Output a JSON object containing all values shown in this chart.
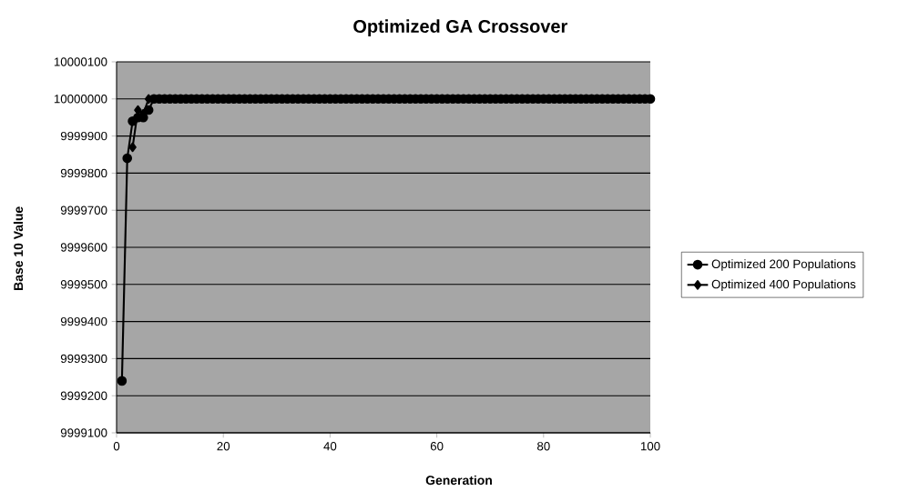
{
  "chart_data": {
    "type": "line",
    "title": "Optimized GA Crossover",
    "xlabel": "Generation",
    "ylabel": "Base 10 Value",
    "x": [
      1,
      2,
      3,
      4,
      5,
      6,
      7,
      8,
      9,
      10,
      11,
      12,
      13,
      14,
      15,
      16,
      17,
      18,
      19,
      20,
      21,
      22,
      23,
      24,
      25,
      26,
      27,
      28,
      29,
      30,
      31,
      32,
      33,
      34,
      35,
      36,
      37,
      38,
      39,
      40,
      41,
      42,
      43,
      44,
      45,
      46,
      47,
      48,
      49,
      50,
      51,
      52,
      53,
      54,
      55,
      56,
      57,
      58,
      59,
      60,
      61,
      62,
      63,
      64,
      65,
      66,
      67,
      68,
      69,
      70,
      71,
      72,
      73,
      74,
      75,
      76,
      77,
      78,
      79,
      80,
      81,
      82,
      83,
      84,
      85,
      86,
      87,
      88,
      89,
      90,
      91,
      92,
      93,
      94,
      95,
      96,
      97,
      98,
      99,
      100
    ],
    "series": [
      {
        "name": "Optimized 200 Populations",
        "color": "#000000",
        "marker": "circle",
        "values": [
          9999240,
          9999840,
          9999940,
          9999950,
          9999950,
          9999970,
          10000000,
          10000000,
          10000000,
          10000000,
          10000000,
          10000000,
          10000000,
          10000000,
          10000000,
          10000000,
          10000000,
          10000000,
          10000000,
          10000000,
          10000000,
          10000000,
          10000000,
          10000000,
          10000000,
          10000000,
          10000000,
          10000000,
          10000000,
          10000000,
          10000000,
          10000000,
          10000000,
          10000000,
          10000000,
          10000000,
          10000000,
          10000000,
          10000000,
          10000000,
          10000000,
          10000000,
          10000000,
          10000000,
          10000000,
          10000000,
          10000000,
          10000000,
          10000000,
          10000000,
          10000000,
          10000000,
          10000000,
          10000000,
          10000000,
          10000000,
          10000000,
          10000000,
          10000000,
          10000000,
          10000000,
          10000000,
          10000000,
          10000000,
          10000000,
          10000000,
          10000000,
          10000000,
          10000000,
          10000000,
          10000000,
          10000000,
          10000000,
          10000000,
          10000000,
          10000000,
          10000000,
          10000000,
          10000000,
          10000000,
          10000000,
          10000000,
          10000000,
          10000000,
          10000000,
          10000000,
          10000000,
          10000000,
          10000000,
          10000000,
          10000000,
          10000000,
          10000000,
          10000000,
          10000000,
          10000000,
          10000000,
          10000000,
          10000000,
          10000000
        ]
      },
      {
        "name": "Optimized 400 Populations",
        "color": "#000000",
        "marker": "diamond",
        "values": [
          null,
          null,
          9999870,
          9999970,
          9999960,
          10000000,
          null,
          null,
          null,
          null,
          null,
          null,
          null,
          null,
          null,
          null,
          null,
          null,
          null,
          null,
          null,
          null,
          null,
          null,
          null,
          null,
          null,
          null,
          null,
          null,
          null,
          null,
          null,
          null,
          null,
          null,
          null,
          null,
          null,
          null,
          null,
          null,
          null,
          null,
          null,
          null,
          null,
          null,
          null,
          null,
          null,
          null,
          null,
          null,
          null,
          null,
          null,
          null,
          null,
          null,
          null,
          null,
          null,
          null,
          null,
          null,
          null,
          null,
          null,
          null,
          null,
          null,
          null,
          null,
          null,
          null,
          null,
          null,
          null,
          null,
          null,
          null,
          null,
          null,
          null,
          null,
          null,
          null,
          null,
          null,
          null,
          null,
          null,
          null,
          null,
          null,
          null,
          null,
          null,
          null
        ]
      }
    ],
    "xlim": [
      0,
      100
    ],
    "xticks": [
      0,
      20,
      40,
      60,
      80,
      100
    ],
    "ylim": [
      9999100,
      10000100
    ],
    "yticks": [
      9999100,
      9999200,
      9999300,
      9999400,
      9999500,
      9999600,
      9999700,
      9999800,
      9999900,
      10000000,
      10000100
    ],
    "grid": "y",
    "legend": "right"
  }
}
